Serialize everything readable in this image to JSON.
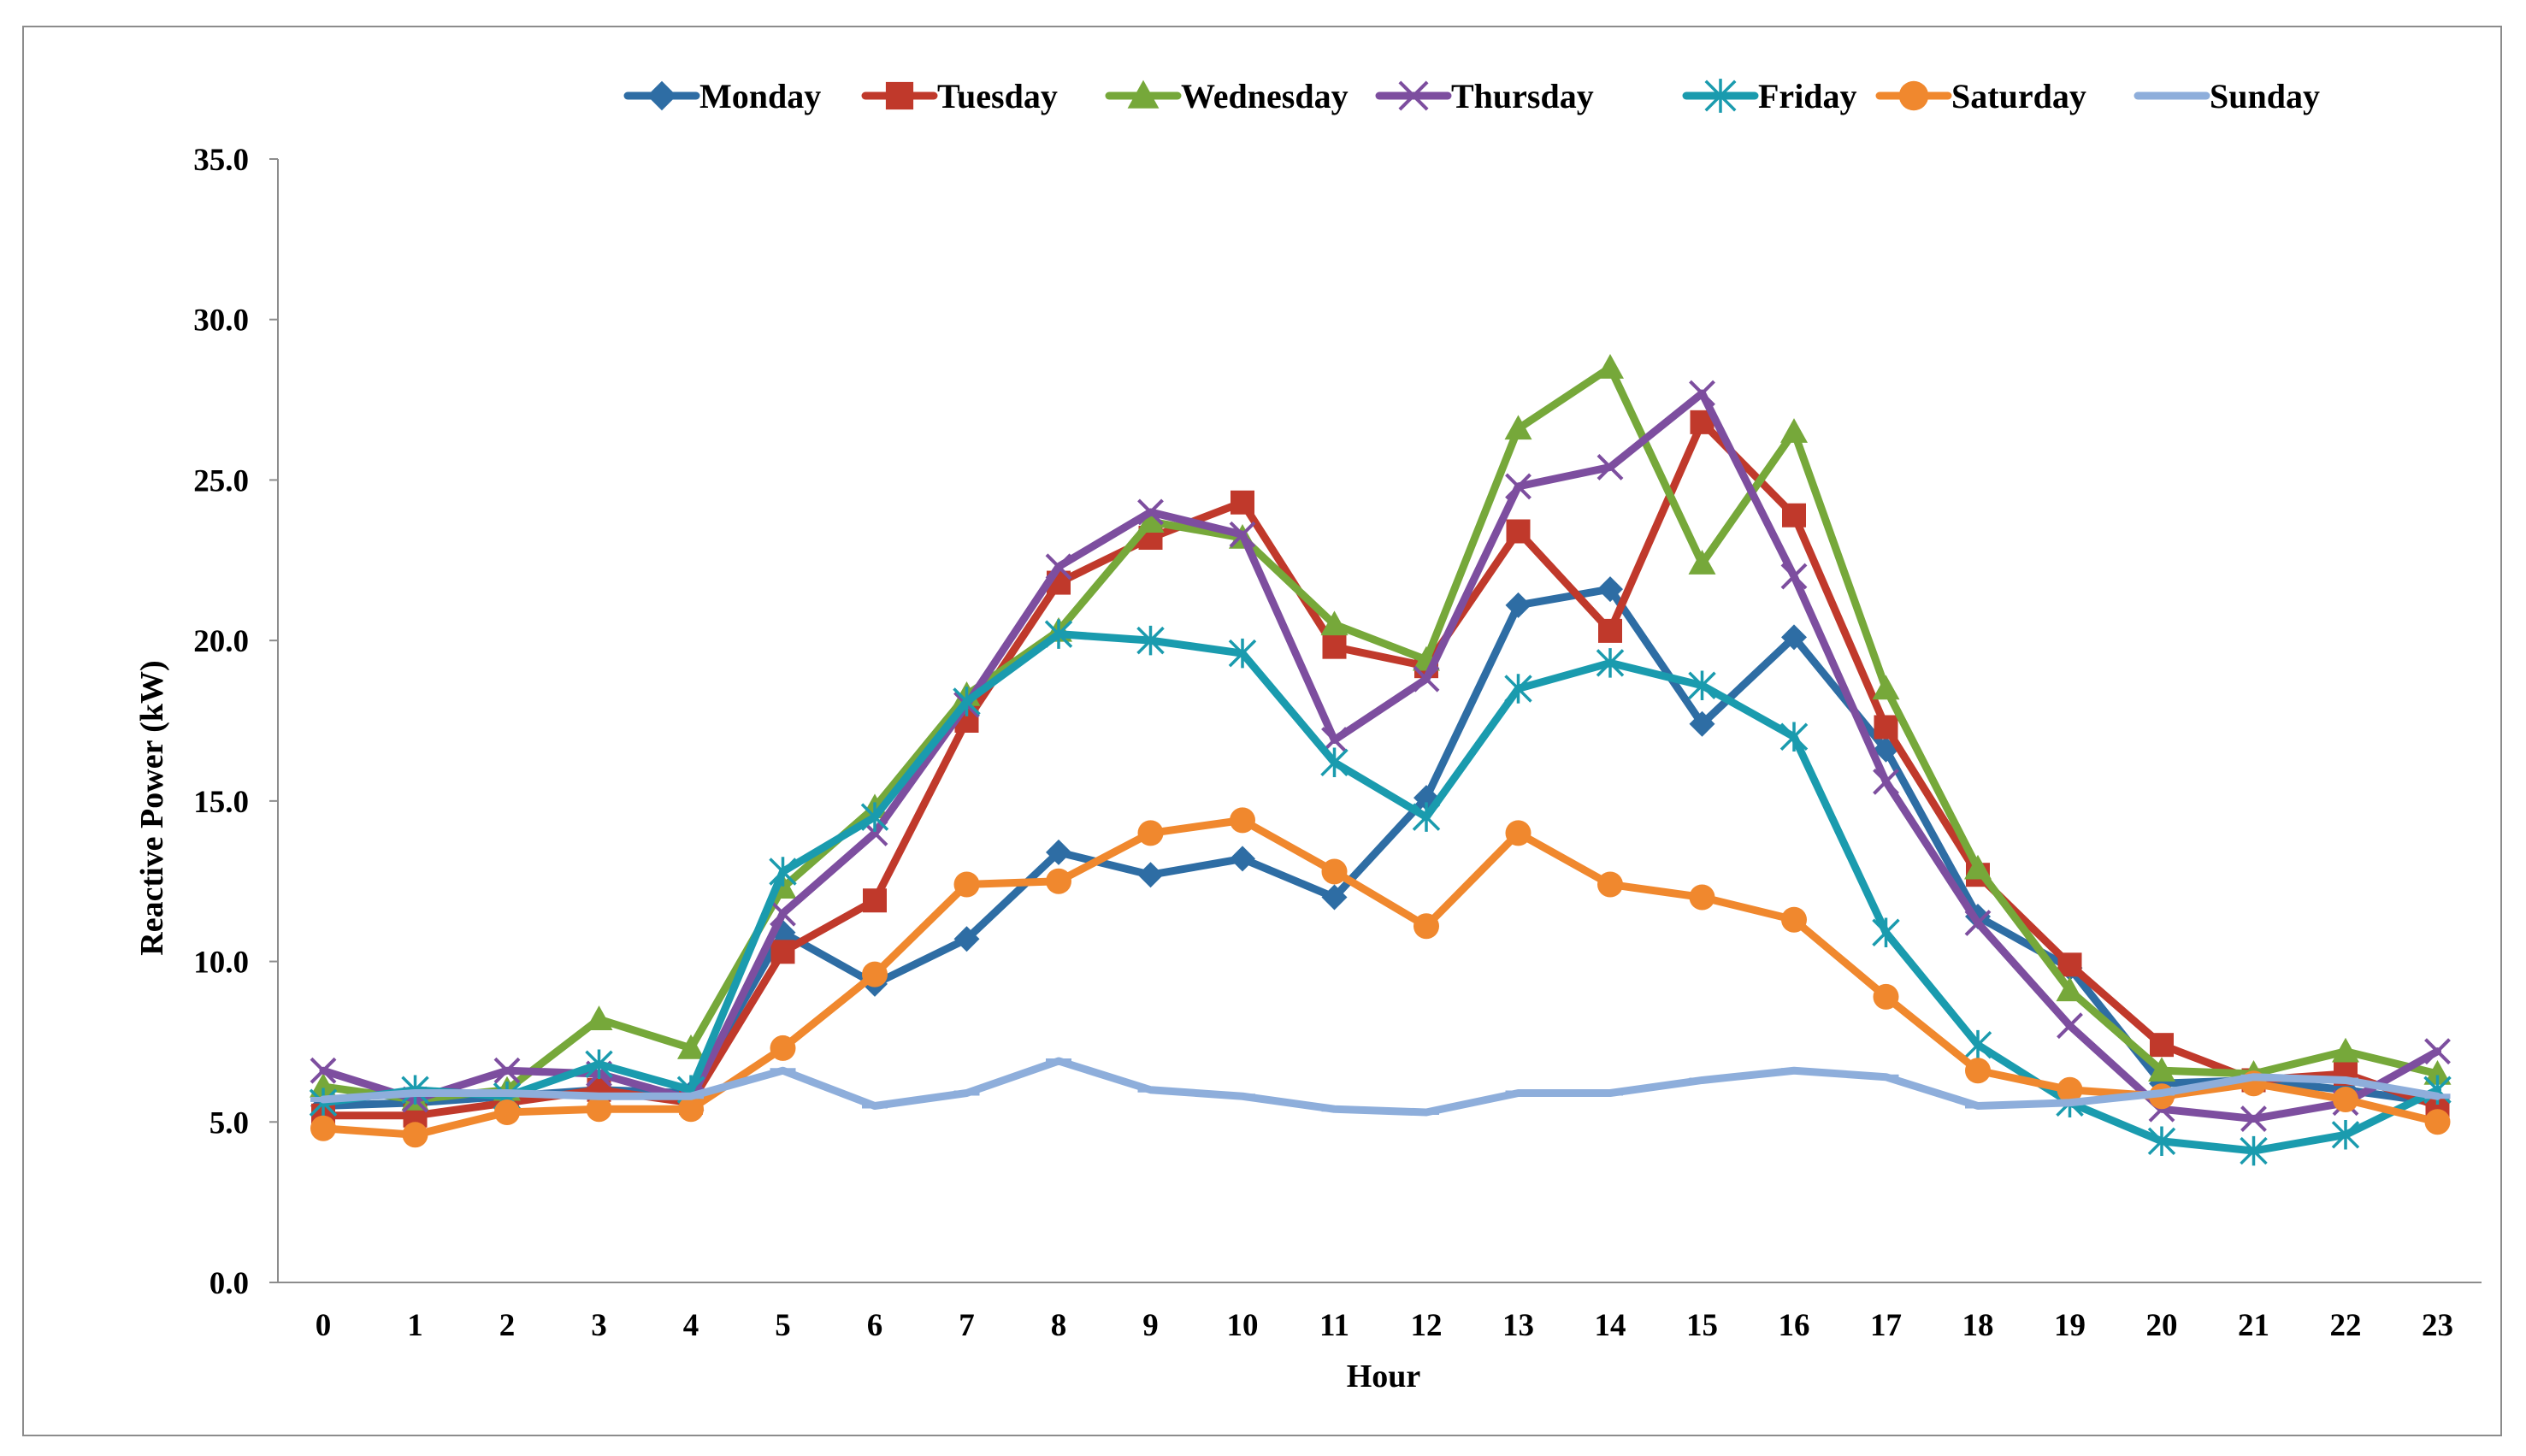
{
  "chart_data": {
    "type": "line",
    "title": "",
    "xlabel": "Hour",
    "ylabel": "Reactive Power  (kW)",
    "x": [
      0,
      1,
      2,
      3,
      4,
      5,
      6,
      7,
      8,
      9,
      10,
      11,
      12,
      13,
      14,
      15,
      16,
      17,
      18,
      19,
      20,
      21,
      22,
      23
    ],
    "x_tick_labels": [
      "0",
      "1",
      "2",
      "3",
      "4",
      "5",
      "6",
      "7",
      "8",
      "9",
      "10",
      "11",
      "12",
      "13",
      "14",
      "15",
      "16",
      "17",
      "18",
      "19",
      "20",
      "21",
      "22",
      "23"
    ],
    "y_tick_labels": [
      "0.0",
      "5.0",
      "10.0",
      "15.0",
      "20.0",
      "25.0",
      "30.0",
      "35.0"
    ],
    "ylim": [
      0,
      35
    ],
    "grid": false,
    "legend_position": "top",
    "series": [
      {
        "name": "Monday",
        "color": "#2E6DA4",
        "marker": "diamond",
        "values": [
          5.5,
          5.6,
          5.8,
          6.0,
          5.9,
          10.9,
          9.3,
          10.7,
          13.4,
          12.7,
          13.2,
          12.0,
          15.1,
          21.1,
          21.6,
          17.4,
          20.1,
          16.6,
          11.4,
          9.8,
          6.2,
          6.3,
          6.0,
          5.6
        ]
      },
      {
        "name": "Tuesday",
        "color": "#C0392B",
        "marker": "square",
        "values": [
          5.2,
          5.2,
          5.6,
          6.0,
          5.6,
          10.3,
          11.9,
          17.5,
          21.8,
          23.2,
          24.3,
          19.8,
          19.2,
          23.4,
          20.3,
          26.8,
          23.9,
          17.3,
          12.7,
          9.9,
          7.4,
          6.3,
          6.5,
          5.5
        ]
      },
      {
        "name": "Wednesday",
        "color": "#76A83A",
        "marker": "triangle",
        "values": [
          6.1,
          5.7,
          6.0,
          8.2,
          7.3,
          12.3,
          14.8,
          18.3,
          20.3,
          23.7,
          23.2,
          20.5,
          19.4,
          26.6,
          28.5,
          22.4,
          26.5,
          18.5,
          12.9,
          9.1,
          6.6,
          6.5,
          7.2,
          6.5
        ]
      },
      {
        "name": "Thursday",
        "color": "#7D4E9F",
        "marker": "x",
        "values": [
          6.6,
          5.7,
          6.6,
          6.5,
          5.7,
          11.5,
          14.0,
          18.0,
          22.3,
          24.0,
          23.3,
          16.9,
          18.8,
          24.8,
          25.4,
          27.7,
          22.0,
          15.6,
          11.2,
          8.0,
          5.4,
          5.1,
          5.6,
          7.2
        ]
      },
      {
        "name": "Friday",
        "color": "#1A9BAE",
        "marker": "asterisk",
        "values": [
          5.6,
          6.0,
          5.8,
          6.8,
          6.0,
          12.8,
          14.5,
          18.1,
          20.2,
          20.0,
          19.6,
          16.2,
          14.5,
          18.5,
          19.3,
          18.6,
          17.0,
          10.9,
          7.4,
          5.6,
          4.4,
          4.1,
          4.6,
          6.0
        ]
      },
      {
        "name": "Saturday",
        "color": "#F0882E",
        "marker": "circle",
        "values": [
          4.8,
          4.6,
          5.3,
          5.4,
          5.4,
          7.3,
          9.6,
          12.4,
          12.5,
          14.0,
          14.4,
          12.8,
          11.1,
          14.0,
          12.4,
          12.0,
          11.3,
          8.9,
          6.6,
          6.0,
          5.8,
          6.2,
          5.7,
          5.0
        ]
      },
      {
        "name": "Sunday",
        "color": "#8EAEDB",
        "marker": "dash",
        "values": [
          5.7,
          5.9,
          5.9,
          5.8,
          5.8,
          6.6,
          5.5,
          5.9,
          6.9,
          6.0,
          5.8,
          5.4,
          5.3,
          5.9,
          5.9,
          6.3,
          6.6,
          6.4,
          5.5,
          5.6,
          5.9,
          6.4,
          6.3,
          5.8
        ]
      }
    ]
  }
}
